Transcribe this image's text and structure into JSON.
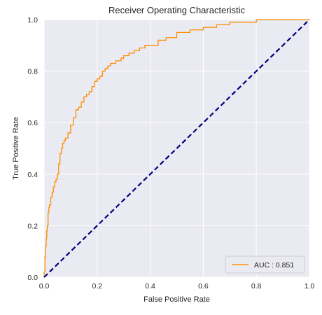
{
  "chart_data": {
    "type": "line",
    "title": "Receiver Operating Characteristic",
    "xlabel": "False Positive Rate",
    "ylabel": "True Positive Rate",
    "xlim": [
      0,
      1
    ],
    "ylim": [
      0,
      1
    ],
    "xticks": [
      "0.0",
      "0.2",
      "0.4",
      "0.6",
      "0.8",
      "1.0"
    ],
    "yticks": [
      "0.0",
      "0.2",
      "0.4",
      "0.6",
      "0.8",
      "1.0"
    ],
    "grid": true,
    "legend_position": "lower-right",
    "series": [
      {
        "name": "AUC : 0.851",
        "color": "#ff8c00",
        "style": "solid",
        "x": [
          0.0,
          0.0,
          0.003,
          0.005,
          0.008,
          0.01,
          0.012,
          0.015,
          0.018,
          0.02,
          0.025,
          0.03,
          0.035,
          0.04,
          0.045,
          0.05,
          0.055,
          0.06,
          0.065,
          0.07,
          0.075,
          0.08,
          0.09,
          0.1,
          0.11,
          0.12,
          0.13,
          0.14,
          0.15,
          0.16,
          0.17,
          0.18,
          0.19,
          0.2,
          0.21,
          0.22,
          0.23,
          0.24,
          0.25,
          0.27,
          0.29,
          0.3,
          0.32,
          0.34,
          0.36,
          0.38,
          0.4,
          0.43,
          0.46,
          0.5,
          0.55,
          0.6,
          0.65,
          0.7,
          0.75,
          0.8,
          0.85,
          0.9,
          0.95,
          1.0
        ],
        "y": [
          0.0,
          0.02,
          0.08,
          0.12,
          0.15,
          0.18,
          0.2,
          0.25,
          0.27,
          0.28,
          0.31,
          0.33,
          0.35,
          0.37,
          0.38,
          0.4,
          0.44,
          0.48,
          0.5,
          0.52,
          0.53,
          0.54,
          0.56,
          0.59,
          0.62,
          0.65,
          0.66,
          0.68,
          0.7,
          0.71,
          0.72,
          0.74,
          0.76,
          0.77,
          0.78,
          0.8,
          0.81,
          0.82,
          0.83,
          0.84,
          0.85,
          0.86,
          0.87,
          0.88,
          0.89,
          0.9,
          0.9,
          0.92,
          0.93,
          0.95,
          0.96,
          0.97,
          0.98,
          0.99,
          0.99,
          1.0,
          1.0,
          1.0,
          1.0,
          1.0
        ]
      },
      {
        "name": "",
        "color": "#000080",
        "style": "dashed",
        "x": [
          0,
          1
        ],
        "y": [
          0,
          1
        ]
      }
    ]
  }
}
